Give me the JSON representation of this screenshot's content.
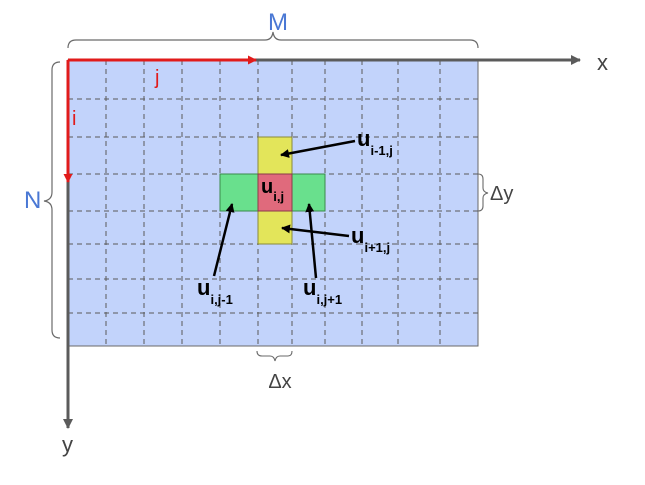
{
  "labels": {
    "m": "M",
    "n": "N",
    "x_axis": "x",
    "y_axis": "y",
    "j_axis": "j",
    "i_axis": "i",
    "dx": "Δx",
    "dy": "Δy"
  },
  "cells": {
    "center": {
      "base": "u",
      "sub": "i,j"
    },
    "above": {
      "base": "u",
      "sub": "i-1,j"
    },
    "below": {
      "base": "u",
      "sub": "i+1,j"
    },
    "left": {
      "base": "u",
      "sub": "i,j-1"
    },
    "right": {
      "base": "u",
      "sub": "i,j+1"
    }
  },
  "colors": {
    "grid_fill": "#c2d3fb",
    "grid_line": "#5a5a5a",
    "center_cell": "#e06a7c",
    "vertical_neighbor": "#e3e55a",
    "horizontal_neighbor": "#69e08d",
    "axis": "#5b5b5b",
    "index_axis": "#e11b1b",
    "label_blue": "#4a78d4",
    "index_label": "#e11b1b"
  }
}
